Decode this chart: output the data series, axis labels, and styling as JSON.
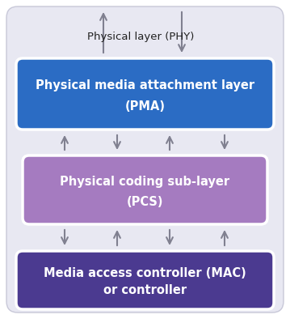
{
  "bg_color": "#e8e8f2",
  "pma_color": "#2b6cc4",
  "pcs_color": "#a57bc0",
  "mac_color": "#4b3a90",
  "arrow_color": "#808090",
  "text_white": "#ffffff",
  "text_dark": "#222222",
  "phy_label": "Physical layer (PHY)",
  "pma_line1": "Physical media attachment layer",
  "pma_line2": "(PMA)",
  "pcs_line1": "Physical coding sub-layer",
  "pcs_line2": "(PCS)",
  "mac_line1": "Media access controller (MAC)",
  "mac_line2": "or controller",
  "fig_width": 3.59,
  "fig_height": 3.94,
  "dpi": 100
}
